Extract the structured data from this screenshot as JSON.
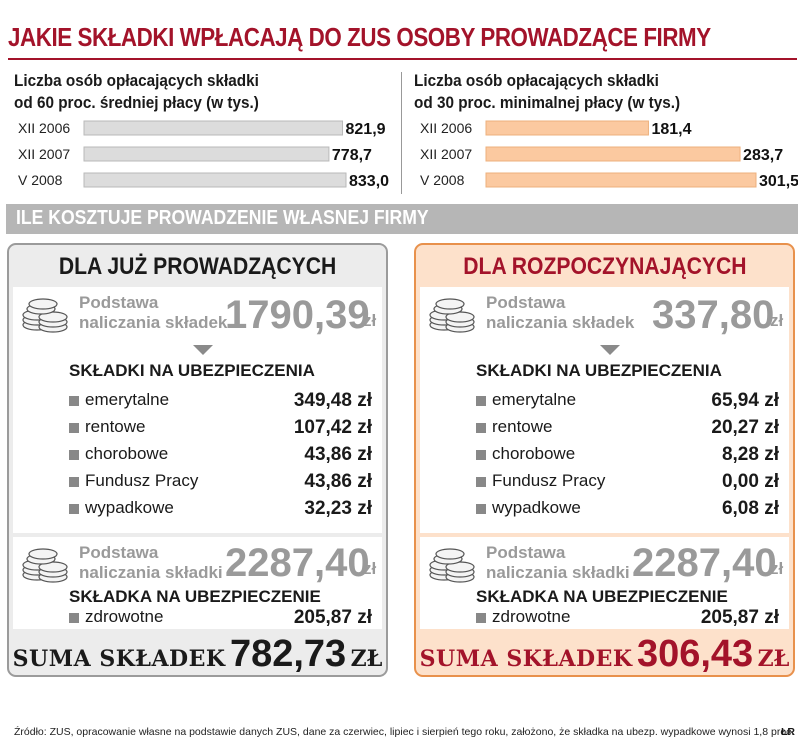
{
  "title": "JAKIE SKŁADKI WPŁACAJĄ DO ZUS OSOBY PROWADZĄCE FIRMY",
  "chart_data": [
    {
      "type": "bar",
      "title_line1": "Liczba osób opłacających składki",
      "title_line2": "od 60 proc. średniej płacy (w tys.)",
      "categories": [
        "XII 2006",
        "XII 2007",
        "V 2008"
      ],
      "values": [
        821.9,
        778.7,
        833.0
      ],
      "value_labels": [
        "821,9",
        "778,7",
        "833,0"
      ],
      "bar_color": "#dcdcdc",
      "bar_edge": "#b9b9b9"
    },
    {
      "type": "bar",
      "title_line1": "Liczba osób opłacających składki",
      "title_line2": "od 30 proc. minimalnej płacy (w tys.)",
      "categories": [
        "XII 2006",
        "XII 2007",
        "V 2008"
      ],
      "values": [
        181.4,
        283.7,
        301.5
      ],
      "value_labels": [
        "181,4",
        "283,7",
        "301,5"
      ],
      "bar_color": "#fbc9a0",
      "bar_edge": "#eeb07c"
    }
  ],
  "section_title": "ILE KOSZTUJE PROWADZENIE WŁASNEJ FIRMY",
  "left": {
    "heading": "DLA JUŻ PROWADZĄCYCH",
    "base1": {
      "label1": "Podstawa",
      "label2": "naliczania składek",
      "value": "1790,39",
      "unit": "zł"
    },
    "insurance_heading": "SKŁADKI NA UBEZPIECZENIA",
    "items": [
      {
        "label": "emerytalne",
        "value": "349,48 zł"
      },
      {
        "label": "rentowe",
        "value": "107,42 zł"
      },
      {
        "label": "chorobowe",
        "value": "43,86 zł"
      },
      {
        "label": "Fundusz Pracy",
        "value": "43,86 zł"
      },
      {
        "label": "wypadkowe",
        "value": "32,23 zł"
      }
    ],
    "base2": {
      "label1": "Podstawa",
      "label2": "naliczania składki",
      "value": "2287,40",
      "unit": "zł"
    },
    "health_heading": "SKŁADKA NA UBEZPIECZENIE",
    "health_item": {
      "label": "zdrowotne",
      "value": "205,87 zł"
    },
    "sum_label": "SUMA SKŁADEK",
    "sum_value": "782,73",
    "sum_unit": "ZŁ"
  },
  "right": {
    "heading": "DLA ROZPOCZYNAJĄCYCH",
    "base1": {
      "label1": "Podstawa",
      "label2": "naliczania składek",
      "value": "337,80",
      "unit": "zł"
    },
    "insurance_heading": "SKŁADKI NA UBEZPIECZENIA",
    "items": [
      {
        "label": "emerytalne",
        "value": "65,94 zł"
      },
      {
        "label": "rentowe",
        "value": "20,27 zł"
      },
      {
        "label": "chorobowe",
        "value": "8,28 zł"
      },
      {
        "label": "Fundusz Pracy",
        "value": "0,00 zł"
      },
      {
        "label": "wypadkowe",
        "value": "6,08 zł"
      }
    ],
    "base2": {
      "label1": "Podstawa",
      "label2": "naliczania składki",
      "value": "2287,40",
      "unit": "zł"
    },
    "health_heading": "SKŁADKA NA UBEZPIECZENIE",
    "health_item": {
      "label": "zdrowotne",
      "value": "205,87 zł"
    },
    "sum_label": "SUMA SKŁADEK",
    "sum_value": "306,43",
    "sum_unit": "ZŁ"
  },
  "source": "Źródło: ZUS, opracowanie własne na  podstawie danych ZUS, dane za czerwiec, lipiec i sierpień tego roku, założono, że składka na ubezp. wypadkowe wynosi 1,8 proc.",
  "logo": "ŁR"
}
